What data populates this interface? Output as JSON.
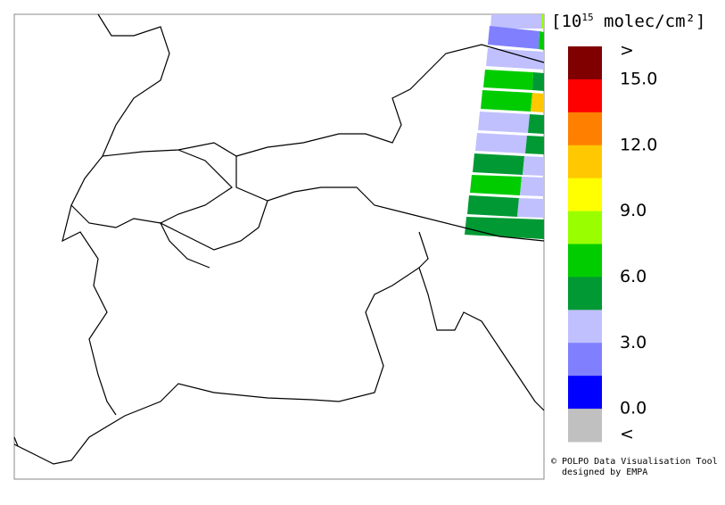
{
  "legend": {
    "title_prefix": "[10",
    "title_exponent": "15",
    "title_suffix": " molec/cm²]",
    "colors": [
      "#800000",
      "#ff0000",
      "#ff8000",
      "#ffc800",
      "#ffff00",
      "#99ff00",
      "#00cc00",
      "#009933",
      "#c0c0ff",
      "#8080ff",
      "#0000ff",
      "#c0c0c0"
    ],
    "labels": [
      ">",
      "15.0",
      "12.0",
      "9.0",
      "6.0",
      "3.0",
      "0.0",
      "<"
    ]
  },
  "credits": [
    "© POLPO Data Visualisation Tool",
    "designed by EMPA"
  ]
}
